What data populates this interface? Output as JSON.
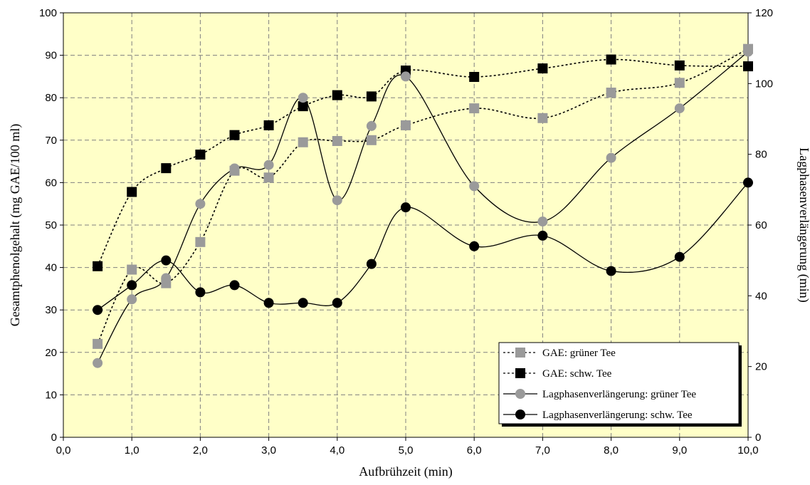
{
  "chart_data": {
    "type": "line",
    "xlabel": "Aufbrühzeit (min)",
    "ylabel": "Gesamtphenolgehalt (mg GAE/100 ml)",
    "y2label": "Lagphasenverlängerung (min)",
    "xlim": [
      0,
      10
    ],
    "ylim": [
      0,
      100
    ],
    "y2lim": [
      0,
      120
    ],
    "x_axis_scale": "two linear segments: 0.0–5.0 occupies the left half of the axis, 5.0–10.0 the right half",
    "xticks": [
      "0,0",
      "1,0",
      "2,0",
      "3,0",
      "4,0",
      "5,0",
      "6,0",
      "7,0",
      "8,0",
      "9,0",
      "10,0"
    ],
    "yticks": [
      "0",
      "10",
      "20",
      "30",
      "40",
      "50",
      "60",
      "70",
      "80",
      "90",
      "100"
    ],
    "y2ticks": [
      "0",
      "20",
      "40",
      "60",
      "80",
      "100",
      "120"
    ],
    "grid": true,
    "plot_background": "#ffffc8",
    "legend_position": "bottom-right",
    "series": [
      {
        "name": "GAE: grüner Tee",
        "axis": "left",
        "line_style": "dotted",
        "marker": "square",
        "color": "#9a9a9a",
        "x": [
          0.5,
          1.0,
          1.5,
          2.0,
          2.5,
          3.0,
          3.5,
          4.0,
          4.5,
          5.0,
          6.0,
          7.0,
          8.0,
          9.0,
          10.0
        ],
        "y": [
          22,
          39.5,
          36.3,
          46,
          62.8,
          61.2,
          69.5,
          69.8,
          70,
          73.5,
          77.5,
          75.2,
          81.2,
          83.5,
          91.5
        ]
      },
      {
        "name": "GAE: schw. Tee",
        "axis": "left",
        "line_style": "dotted",
        "marker": "square",
        "color": "#000000",
        "x": [
          0.5,
          1.0,
          1.5,
          2.0,
          2.5,
          3.0,
          3.5,
          4.0,
          4.5,
          5.0,
          6.0,
          7.0,
          8.0,
          9.0,
          10.0
        ],
        "y": [
          40.3,
          57.8,
          63.4,
          66.6,
          71.2,
          73.5,
          78,
          80.6,
          80.3,
          86.4,
          84.9,
          86.9,
          89,
          87.6,
          87.4
        ]
      },
      {
        "name": "Lagphasenverlängerung: grüner Tee",
        "axis": "right",
        "line_style": "solid",
        "marker": "circle",
        "color": "#9a9a9a",
        "x": [
          0.5,
          1.0,
          1.5,
          2.0,
          2.5,
          3.0,
          3.5,
          4.0,
          4.5,
          5.0,
          6.0,
          7.0,
          8.0,
          9.0,
          10.0
        ],
        "y": [
          21,
          39,
          45,
          66,
          76,
          77,
          96,
          67,
          88,
          102,
          71,
          61,
          79,
          93,
          109
        ]
      },
      {
        "name": "Lagphasenverlängerung: schw. Tee",
        "axis": "right",
        "line_style": "solid",
        "marker": "circle",
        "color": "#000000",
        "x": [
          0.5,
          1.0,
          1.5,
          2.0,
          2.5,
          3.0,
          3.5,
          4.0,
          4.5,
          5.0,
          6.0,
          7.0,
          8.0,
          9.0,
          10.0
        ],
        "y": [
          36,
          43,
          50,
          41,
          43,
          38,
          38,
          38,
          49,
          65,
          54,
          57,
          47,
          51,
          72
        ]
      }
    ]
  }
}
